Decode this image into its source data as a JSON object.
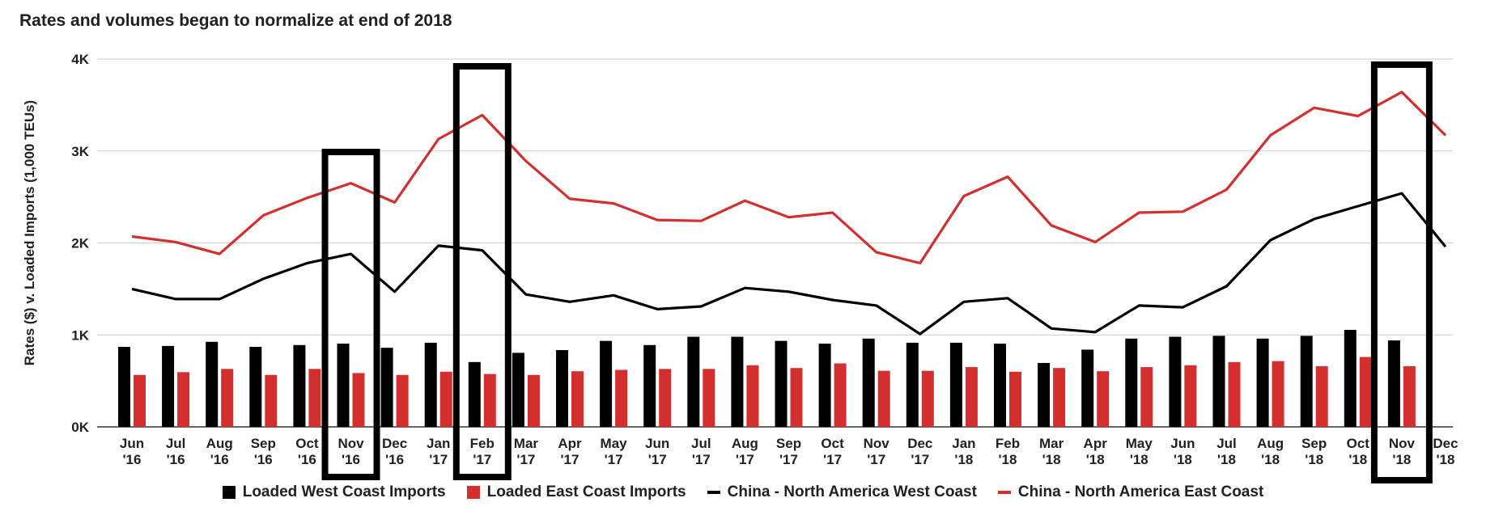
{
  "chart_data": {
    "type": "bar",
    "title": "Rates and volumes began to normalize at end of 2018",
    "ylabel": "Rates ($) v. Loaded Imports (1,000 TEUs)",
    "xlabel": "",
    "ylim": [
      0,
      4000
    ],
    "yticks": [
      "0K",
      "1K",
      "2K",
      "3K",
      "4K"
    ],
    "grid": true,
    "legend_position": "bottom",
    "categories": [
      [
        "Jun",
        "'16"
      ],
      [
        "Jul",
        "'16"
      ],
      [
        "Aug",
        "'16"
      ],
      [
        "Sep",
        "'16"
      ],
      [
        "Oct",
        "'16"
      ],
      [
        "Nov",
        "'16"
      ],
      [
        "Dec",
        "'16"
      ],
      [
        "Jan",
        "'17"
      ],
      [
        "Feb",
        "'17"
      ],
      [
        "Mar",
        "'17"
      ],
      [
        "Apr",
        "'17"
      ],
      [
        "May",
        "'17"
      ],
      [
        "Jun",
        "'17"
      ],
      [
        "Jul",
        "'17"
      ],
      [
        "Aug",
        "'17"
      ],
      [
        "Sep",
        "'17"
      ],
      [
        "Oct",
        "'17"
      ],
      [
        "Nov",
        "'17"
      ],
      [
        "Dec",
        "'17"
      ],
      [
        "Jan",
        "'18"
      ],
      [
        "Feb",
        "'18"
      ],
      [
        "Mar",
        "'18"
      ],
      [
        "Apr",
        "'18"
      ],
      [
        "May",
        "'18"
      ],
      [
        "Jun",
        "'18"
      ],
      [
        "Jul",
        "'18"
      ],
      [
        "Aug",
        "'18"
      ],
      [
        "Sep",
        "'18"
      ],
      [
        "Oct",
        "'18"
      ],
      [
        "Nov",
        "'18"
      ],
      [
        "Dec",
        "'18"
      ]
    ],
    "series": [
      {
        "name": "Loaded West Coast Imports",
        "kind": "bar",
        "color": "#000000",
        "values": [
          870,
          880,
          925,
          870,
          890,
          905,
          860,
          915,
          705,
          805,
          835,
          935,
          890,
          980,
          980,
          935,
          905,
          960,
          915,
          915,
          905,
          695,
          840,
          960,
          980,
          990,
          960,
          990,
          1055,
          940,
          null
        ]
      },
      {
        "name": "Loaded East Coast Imports",
        "kind": "bar",
        "color": "#d32f2f",
        "values": [
          565,
          595,
          630,
          565,
          630,
          585,
          565,
          600,
          575,
          565,
          605,
          620,
          630,
          630,
          670,
          640,
          690,
          610,
          610,
          650,
          600,
          640,
          605,
          650,
          670,
          705,
          715,
          660,
          760,
          660,
          null
        ]
      },
      {
        "name": "China - North America West Coast",
        "kind": "line",
        "color": "#000000",
        "values": [
          1500,
          1390,
          1390,
          1610,
          1780,
          1880,
          1470,
          1970,
          1920,
          1440,
          1360,
          1430,
          1280,
          1310,
          1510,
          1470,
          1380,
          1320,
          1010,
          1360,
          1400,
          1070,
          1030,
          1320,
          1300,
          1530,
          2030,
          2260,
          2400,
          2540,
          1960
        ]
      },
      {
        "name": "China - North America East Coast",
        "kind": "line",
        "color": "#d32f2f",
        "values": [
          2070,
          2010,
          1880,
          2300,
          2490,
          2650,
          2440,
          3130,
          3390,
          2890,
          2480,
          2430,
          2250,
          2240,
          2460,
          2280,
          2330,
          1900,
          1780,
          2510,
          2720,
          2190,
          2010,
          2330,
          2340,
          2580,
          3170,
          3470,
          3380,
          3640,
          3170
        ]
      }
    ],
    "highlight_boxes": [
      {
        "label": "Nov '16"
      },
      {
        "label": "Feb '17"
      },
      {
        "label": "Nov '18"
      }
    ]
  }
}
